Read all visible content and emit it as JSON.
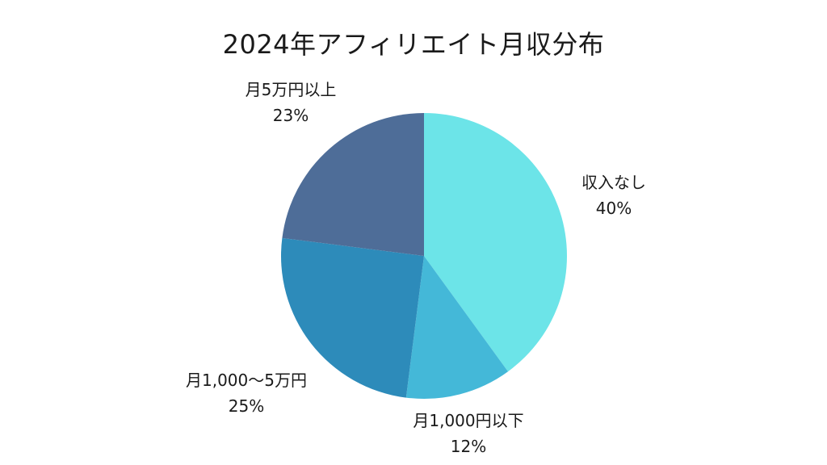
{
  "chart_data": {
    "type": "pie",
    "title": "2024年アフィリエイト月収分布",
    "slices": [
      {
        "label": "収入なし",
        "percent_label": "40%",
        "value": 40,
        "color": "#6ce4e8"
      },
      {
        "label": "月1,000円以下",
        "percent_label": "12%",
        "value": 12,
        "color": "#44b8d8"
      },
      {
        "label": "月1,000～5万円",
        "percent_label": "25%",
        "value": 25,
        "color": "#2d8bba"
      },
      {
        "label": "月5万円以上",
        "percent_label": "23%",
        "value": 23,
        "color": "#4e6d98"
      }
    ]
  }
}
